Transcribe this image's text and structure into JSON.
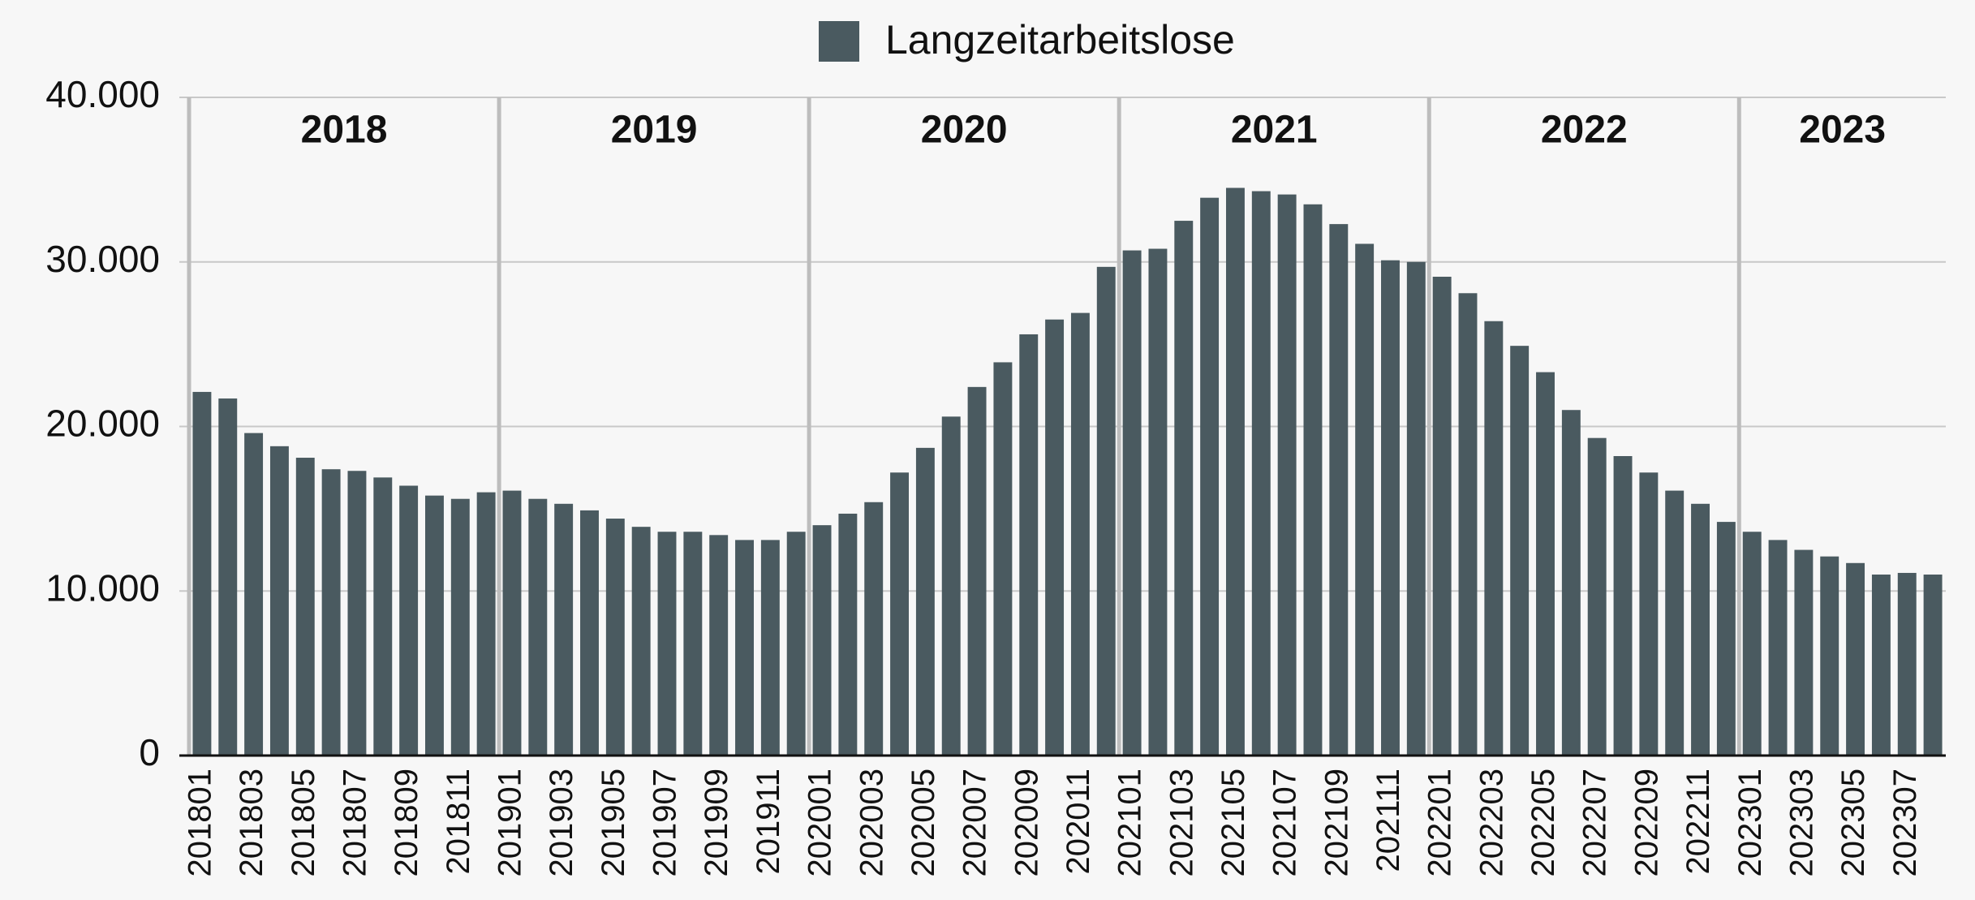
{
  "chart_data": {
    "type": "bar",
    "series": [
      {
        "name": "Langzeitarbeitslose",
        "color": "#4a5a60",
        "values": [
          22100,
          21700,
          19600,
          18800,
          18100,
          17400,
          17300,
          16900,
          16400,
          15800,
          15600,
          16000,
          16100,
          15600,
          15300,
          14900,
          14400,
          13900,
          13600,
          13600,
          13400,
          13100,
          13100,
          13600,
          14000,
          14700,
          15400,
          17200,
          18700,
          20600,
          22400,
          23900,
          25600,
          26500,
          26900,
          29700,
          30700,
          30800,
          32500,
          33900,
          34500,
          34300,
          34100,
          33500,
          32300,
          31100,
          30100,
          30000,
          29100,
          28100,
          26400,
          24900,
          23300,
          21000,
          19300,
          18200,
          17200,
          16100,
          15300,
          14200,
          13600,
          13100,
          12500,
          12100,
          11700,
          11000,
          11100,
          11000
        ]
      }
    ],
    "categories": [
      "201801",
      null,
      "201803",
      null,
      "201805",
      null,
      "201807",
      null,
      "201809",
      null,
      "201811",
      null,
      "201901",
      null,
      "201903",
      null,
      "201905",
      null,
      "201907",
      null,
      "201909",
      null,
      "201911",
      null,
      "202001",
      null,
      "202003",
      null,
      "202005",
      null,
      "202007",
      null,
      "202009",
      null,
      "202011",
      null,
      "202101",
      null,
      "202103",
      null,
      "202105",
      null,
      "202107",
      null,
      "202109",
      null,
      "202111",
      null,
      "202201",
      null,
      "202203",
      null,
      "202205",
      null,
      "202207",
      null,
      "202209",
      null,
      "202211",
      null,
      "202301",
      null,
      "202303",
      null,
      "202305",
      null,
      "202307",
      null
    ],
    "annotations": [
      "2018",
      "2019",
      "2020",
      "2021",
      "2022",
      "2023"
    ],
    "ylim": [
      0,
      40000
    ],
    "yticks": [
      0,
      {
        "value": 10000,
        "label": "10.000"
      },
      {
        "value": 20000,
        "label": "20.000"
      },
      {
        "value": 30000,
        "label": "30.000"
      },
      {
        "value": 40000,
        "label": "40.000"
      }
    ],
    "grid": true,
    "legend": "top"
  }
}
